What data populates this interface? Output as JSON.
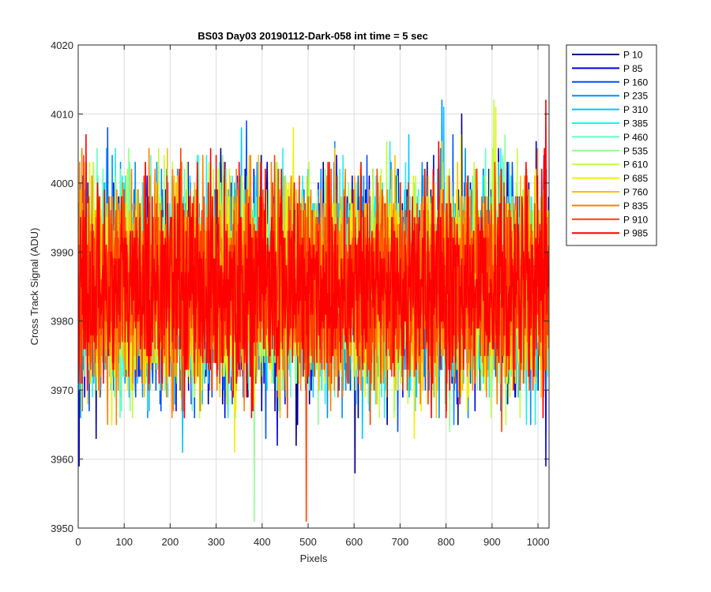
{
  "chart_data": {
    "type": "line",
    "title": "BS03 Day03 20190112-Dark-058 int time = 5 sec",
    "xlabel": "Pixels",
    "ylabel": "Cross Track Signal (ADU)",
    "xlim": [
      0,
      1024
    ],
    "ylim": [
      3950,
      4020
    ],
    "xticks": [
      0,
      100,
      200,
      300,
      400,
      500,
      600,
      700,
      800,
      900,
      1000
    ],
    "yticks": [
      3950,
      3960,
      3970,
      3980,
      3990,
      4000,
      4010,
      4020
    ],
    "grid": true,
    "legend_position": "outside-top-right",
    "series_stats": {
      "mean": 3985,
      "std": 7,
      "min": 3951,
      "max": 4020,
      "n_points": 1024
    },
    "series": [
      {
        "name": "P 10",
        "color": "#00008f"
      },
      {
        "name": "P 85",
        "color": "#0000ef"
      },
      {
        "name": "P 160",
        "color": "#0050ff"
      },
      {
        "name": "P 235",
        "color": "#0090ff"
      },
      {
        "name": "P 310",
        "color": "#00c8ff"
      },
      {
        "name": "P 385",
        "color": "#20f0f0"
      },
      {
        "name": "P 460",
        "color": "#60ffc0"
      },
      {
        "name": "P 535",
        "color": "#90ff90"
      },
      {
        "name": "P 610",
        "color": "#c0ff40"
      },
      {
        "name": "P 685",
        "color": "#f0f000"
      },
      {
        "name": "P 760",
        "color": "#ffc000"
      },
      {
        "name": "P 835",
        "color": "#ff8000"
      },
      {
        "name": "P 910",
        "color": "#ff4000"
      },
      {
        "name": "P 985",
        "color": "#ff0000"
      }
    ]
  }
}
